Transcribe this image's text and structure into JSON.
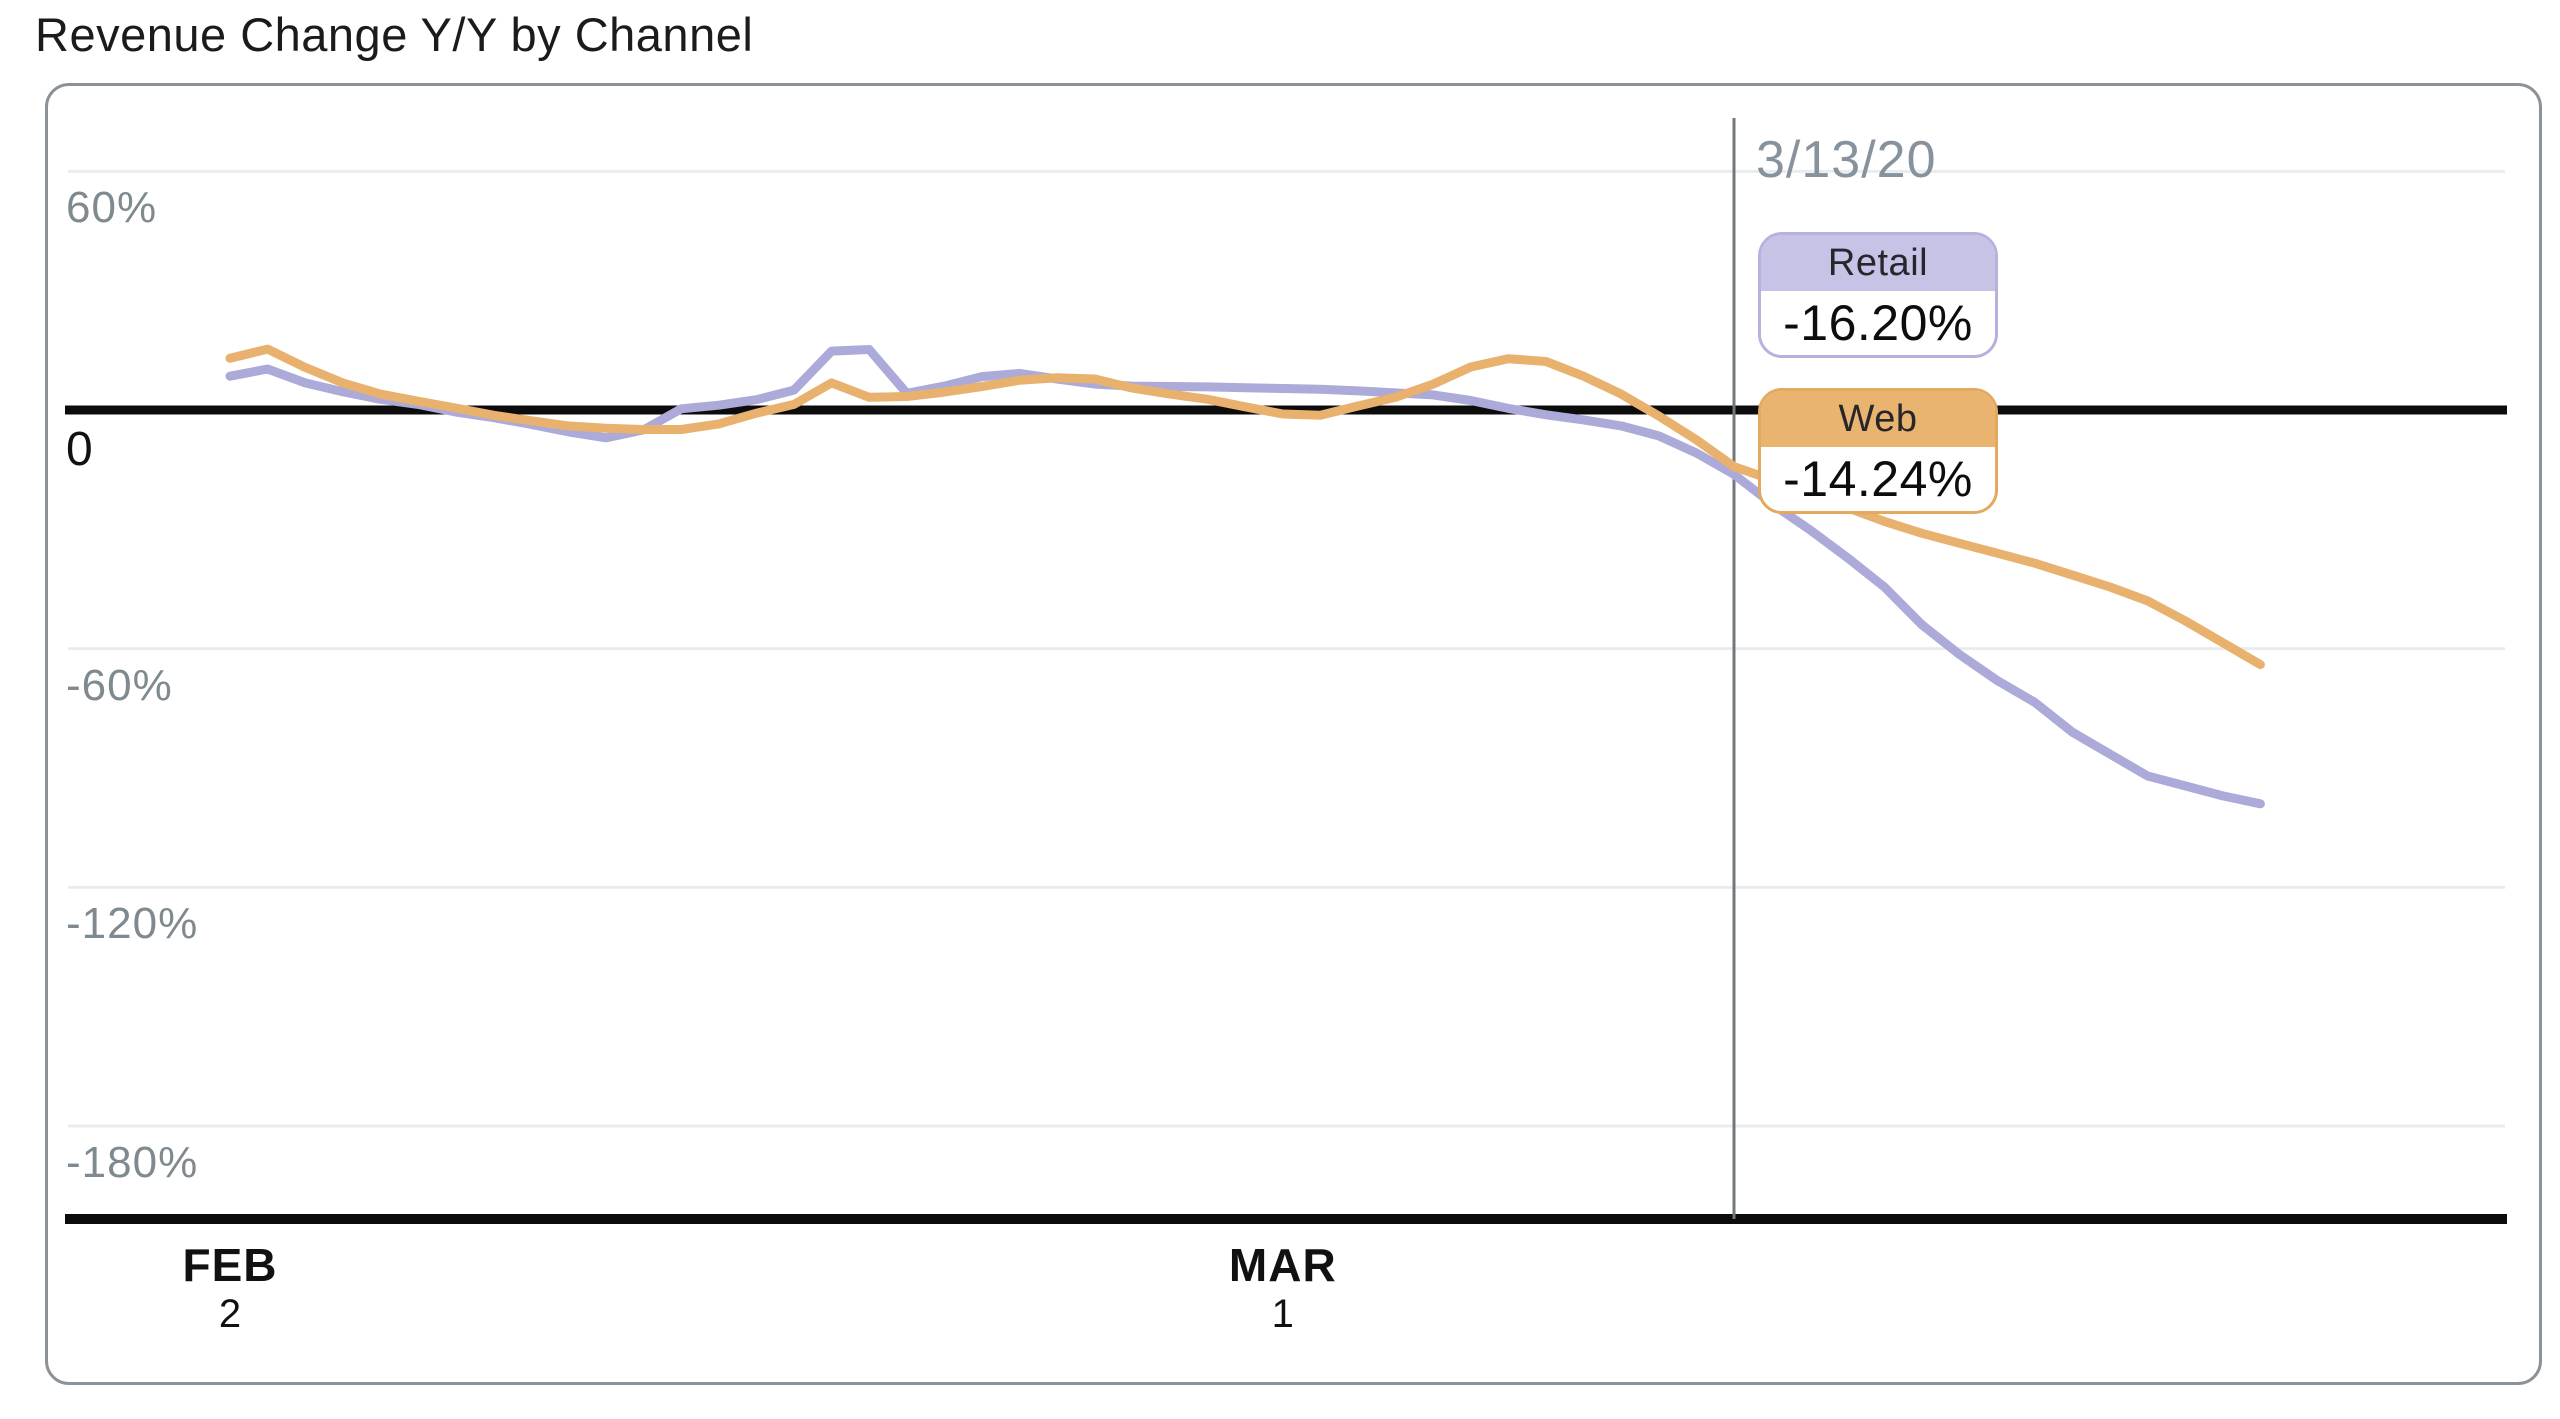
{
  "chart_data": {
    "type": "line",
    "title": "Revenue Change Y/Y by Channel",
    "xlabel": "",
    "ylabel": "",
    "x_unit": "days_after_feb_2",
    "grid": "horizontal",
    "legend_position": "inline-tooltips",
    "ylim": [
      -200,
      80
    ],
    "y_axis": {
      "ticks": [
        {
          "value": 60,
          "label": "60%"
        },
        {
          "value": 0,
          "label": "0"
        },
        {
          "value": -60,
          "label": "-60%"
        },
        {
          "value": -120,
          "label": "-120%"
        },
        {
          "value": -180,
          "label": "-180%"
        }
      ]
    },
    "x_axis": {
      "ticks": [
        {
          "day": 0,
          "month": "FEB",
          "day_of_month": "2"
        },
        {
          "day": 28,
          "month": "MAR",
          "day_of_month": "1"
        }
      ]
    },
    "annotation": {
      "date_label": "3/13/20",
      "day": 40,
      "values": [
        {
          "series": "Retail",
          "label": "-16.20%",
          "header_fill": "#c6c3e6",
          "border": "#b5b2de"
        },
        {
          "series": "Web",
          "label": "-14.24%",
          "header_fill": "#e9b470",
          "border": "#e2a95f"
        }
      ]
    },
    "series": [
      {
        "name": "Retail",
        "color": "#abaad9",
        "points": [
          [
            0,
            8.5
          ],
          [
            1,
            10.3
          ],
          [
            2,
            6.8
          ],
          [
            3,
            4.6
          ],
          [
            4,
            2.7
          ],
          [
            5,
            1.4
          ],
          [
            6,
            -0.5
          ],
          [
            7,
            -1.9
          ],
          [
            8,
            -3.6
          ],
          [
            9,
            -5.5
          ],
          [
            10,
            -7.0
          ],
          [
            11,
            -5.0
          ],
          [
            12,
            0.3
          ],
          [
            13,
            1.2
          ],
          [
            14,
            2.6
          ],
          [
            15,
            5.0
          ],
          [
            16,
            14.8
          ],
          [
            17,
            15.2
          ],
          [
            18,
            4.2
          ],
          [
            19,
            6.0
          ],
          [
            20,
            8.4
          ],
          [
            21,
            9.2
          ],
          [
            22,
            7.8
          ],
          [
            23,
            6.5
          ],
          [
            24,
            6.0
          ],
          [
            25,
            5.9
          ],
          [
            26,
            5.8
          ],
          [
            27,
            5.6
          ],
          [
            28,
            5.4
          ],
          [
            29,
            5.2
          ],
          [
            30,
            4.8
          ],
          [
            31,
            4.3
          ],
          [
            32,
            3.8
          ],
          [
            33,
            2.4
          ],
          [
            34,
            0.4
          ],
          [
            35,
            -1.2
          ],
          [
            36,
            -2.5
          ],
          [
            37,
            -4.0
          ],
          [
            38,
            -6.5
          ],
          [
            39,
            -10.8
          ],
          [
            40,
            -16.2
          ],
          [
            41,
            -23.5
          ],
          [
            42,
            -30
          ],
          [
            43,
            -37
          ],
          [
            44,
            -44.5
          ],
          [
            45,
            -54
          ],
          [
            46,
            -61.5
          ],
          [
            47,
            -68
          ],
          [
            48,
            -73.5
          ],
          [
            49,
            -81
          ],
          [
            50,
            -86.5
          ],
          [
            51,
            -92
          ],
          [
            52,
            -94.5
          ],
          [
            53,
            -97
          ],
          [
            54,
            -99
          ]
        ]
      },
      {
        "name": "Web",
        "color": "#e8b26e",
        "points": [
          [
            0,
            13
          ],
          [
            1,
            15.3
          ],
          [
            2,
            10.7
          ],
          [
            3,
            6.8
          ],
          [
            4,
            4.0
          ],
          [
            5,
            2.2
          ],
          [
            6,
            0.5
          ],
          [
            7,
            -1.3
          ],
          [
            8,
            -2.7
          ],
          [
            9,
            -4.0
          ],
          [
            10,
            -4.6
          ],
          [
            11,
            -4.9
          ],
          [
            12,
            -4.9
          ],
          [
            13,
            -3.5
          ],
          [
            14,
            -0.8
          ],
          [
            15,
            1.4
          ],
          [
            16,
            6.8
          ],
          [
            17,
            3.2
          ],
          [
            18,
            3.4
          ],
          [
            19,
            4.5
          ],
          [
            20,
            5.9
          ],
          [
            21,
            7.5
          ],
          [
            22,
            8.1
          ],
          [
            23,
            7.8
          ],
          [
            24,
            5.5
          ],
          [
            25,
            4.0
          ],
          [
            26,
            2.7
          ],
          [
            27,
            0.8
          ],
          [
            28,
            -1.0
          ],
          [
            29,
            -1.3
          ],
          [
            30,
            1.0
          ],
          [
            31,
            3.2
          ],
          [
            32,
            6.5
          ],
          [
            33,
            10.8
          ],
          [
            34,
            12.9
          ],
          [
            35,
            12.2
          ],
          [
            36,
            8.5
          ],
          [
            37,
            4.0
          ],
          [
            38,
            -1.5
          ],
          [
            39,
            -7.5
          ],
          [
            40,
            -14.24
          ],
          [
            41,
            -17.5
          ],
          [
            42,
            -21
          ],
          [
            43,
            -24.5
          ],
          [
            44,
            -28
          ],
          [
            45,
            -31
          ],
          [
            46,
            -33.5
          ],
          [
            47,
            -36
          ],
          [
            48,
            -38.5
          ],
          [
            49,
            -41.5
          ],
          [
            50,
            -44.5
          ],
          [
            51,
            -48
          ],
          [
            52,
            -53
          ],
          [
            53,
            -58.5
          ],
          [
            54,
            -64
          ]
        ]
      }
    ],
    "colors": {
      "grid": "#e7edee",
      "axis": "#0c0c0c",
      "annotation_line": "#70787c",
      "tick_text": "#7f8a90",
      "date_text": "#87929c",
      "panel_border": "#8b9298",
      "title_text": "#1b1b1b"
    }
  }
}
